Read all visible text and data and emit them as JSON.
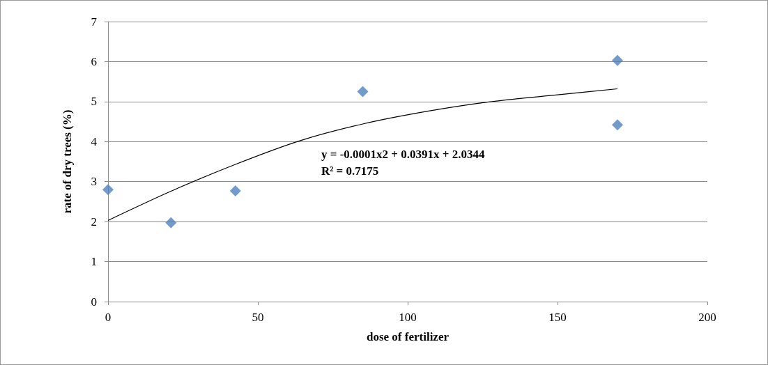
{
  "chart_data": {
    "type": "scatter",
    "xlabel": "dose of fertilizer",
    "ylabel": "rate of dry trees (%)",
    "xlim": [
      0,
      200
    ],
    "xticks": [
      0,
      50,
      100,
      150,
      200
    ],
    "ylim": [
      0,
      7
    ],
    "yticks": [
      0,
      1,
      2,
      3,
      4,
      5,
      6,
      7
    ],
    "grid": "y",
    "series": [
      {
        "color": "#4f81bd",
        "marker": "diamond",
        "x": [
          0,
          21,
          42.5,
          85,
          170,
          170
        ],
        "values": [
          2.8,
          1.97,
          2.77,
          5.25,
          6.03,
          4.42
        ]
      },
      {
        "type": "line",
        "color": "#000000",
        "marker": "none",
        "line_style": "solid",
        "x": [
          0,
          21,
          42.5,
          64,
          85,
          106,
          127,
          150,
          170
        ],
        "values": [
          2.03,
          2.76,
          3.43,
          4.02,
          4.44,
          4.75,
          4.99,
          5.17,
          5.32
        ]
      }
    ],
    "annotations": [
      "y = -0.0001x2 + 0.0391x + 2.0344",
      "R² = 0.7175"
    ]
  }
}
